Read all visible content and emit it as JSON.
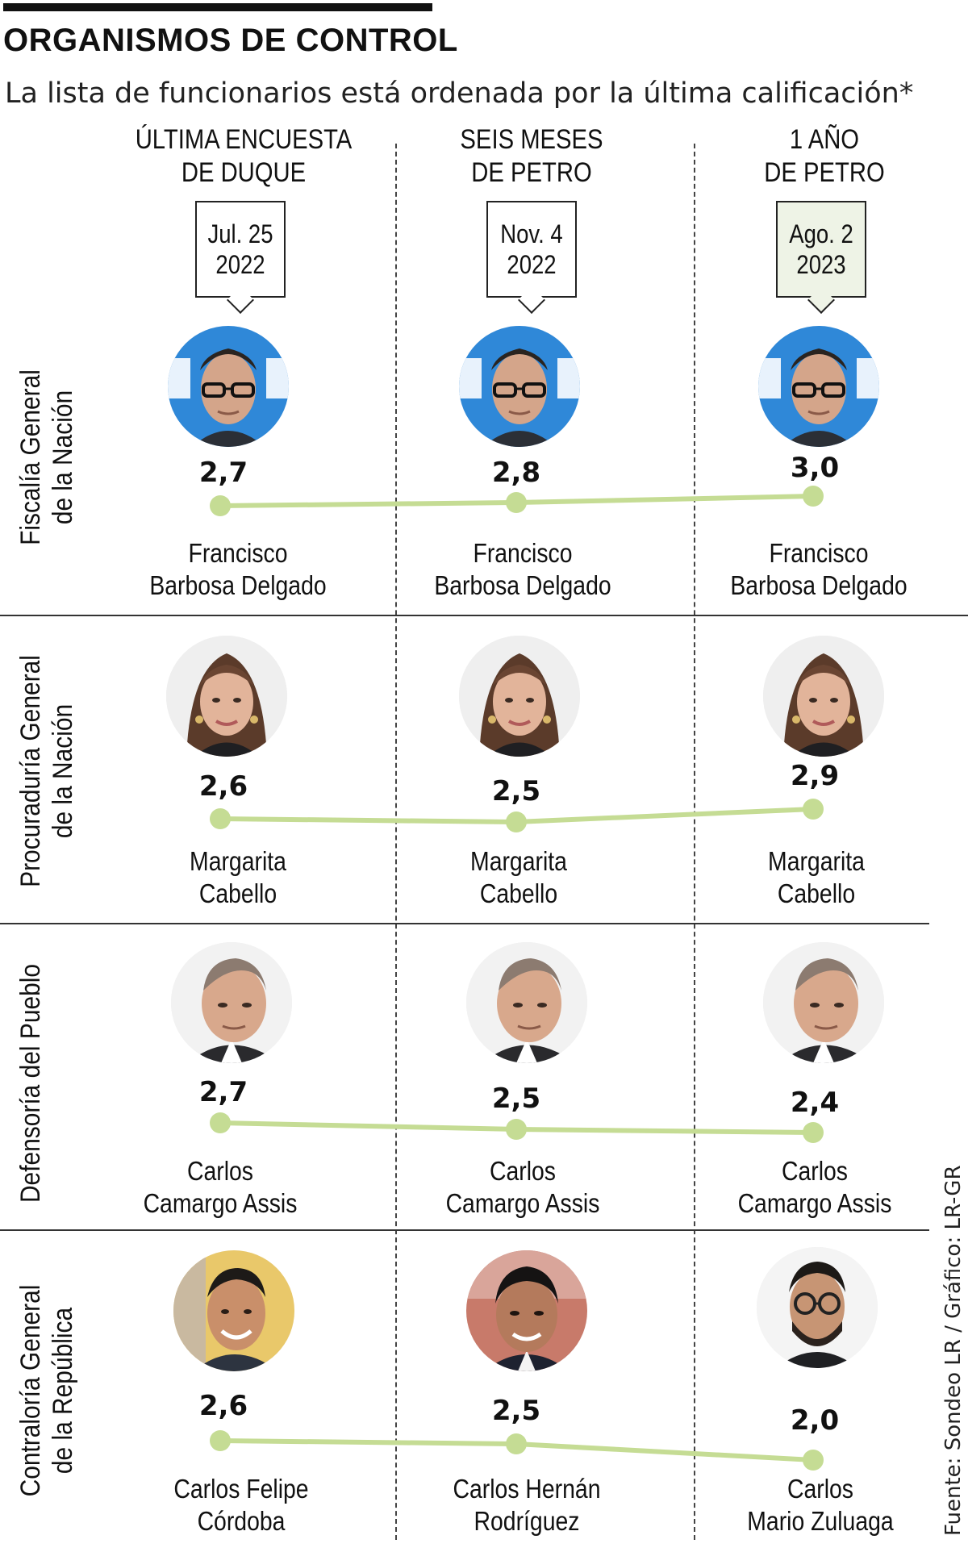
{
  "header": {
    "title": "ORGANISMOS DE CONTROL",
    "subtitle": "La lista de funcionarios está ordenada por la última calificación*"
  },
  "columns": [
    {
      "line1": "ÚLTIMA ENCUESTA",
      "line2": "DE DUQUE",
      "date_line1": "Jul. 25",
      "date_line2": "2022"
    },
    {
      "line1": "SEIS MESES",
      "line2": "DE PETRO",
      "date_line1": "Nov. 4",
      "date_line2": "2022"
    },
    {
      "line1": "1 AÑO",
      "line2": "DE PETRO",
      "date_line1": "Ago. 2",
      "date_line2": "2023"
    }
  ],
  "rows": [
    {
      "label_line1": "Fiscalía General",
      "label_line2": "de la Nación",
      "scores": [
        "2,7",
        "2,8",
        "3,0"
      ],
      "names": [
        [
          "Francisco",
          "Barbosa Delgado"
        ],
        [
          "Francisco",
          "Barbosa Delgado"
        ],
        [
          "Francisco",
          "Barbosa Delgado"
        ]
      ]
    },
    {
      "label_line1": "Procuraduría General",
      "label_line2": "de la Nación",
      "scores": [
        "2,6",
        "2,5",
        "2,9"
      ],
      "names": [
        [
          "Margarita",
          "Cabello"
        ],
        [
          "Margarita",
          "Cabello"
        ],
        [
          "Margarita",
          "Cabello"
        ]
      ]
    },
    {
      "label_line1": "Defensoría del Pueblo",
      "label_line2": "",
      "scores": [
        "2,7",
        "2,5",
        "2,4"
      ],
      "names": [
        [
          "Carlos",
          "Camargo Assis"
        ],
        [
          "Carlos",
          "Camargo Assis"
        ],
        [
          "Carlos",
          "Camargo Assis"
        ]
      ]
    },
    {
      "label_line1": "Contraloría General",
      "label_line2": "de la República",
      "scores": [
        "2,6",
        "2,5",
        "2,0"
      ],
      "names": [
        [
          "Carlos Felipe",
          "Córdoba"
        ],
        [
          "Carlos Hernán",
          "Rodríguez"
        ],
        [
          "Carlos",
          "Mario Zuluaga"
        ]
      ]
    }
  ],
  "source": "Fuente: Sondeo LR / Gráfico: LR-GR",
  "colors": {
    "line": "#c5dc94",
    "marker": "#c5dc94",
    "current_date_box": "#eef3e6",
    "text": "#111111"
  },
  "chart_data": {
    "type": "line",
    "categories": [
      "Jul. 25 2022",
      "Nov. 4 2022",
      "Ago. 2 2023"
    ],
    "series": [
      {
        "name": "Francisco Barbosa Delgado",
        "values": [
          2.7,
          2.8,
          3.0
        ]
      },
      {
        "name": "Margarita Cabello",
        "values": [
          2.6,
          2.5,
          2.9
        ]
      },
      {
        "name": "Carlos Camargo Assis",
        "values": [
          2.7,
          2.5,
          2.4
        ]
      },
      {
        "name": "Carlos Felipe Córdoba / Carlos Hernán Rodríguez / Carlos Mario Zuluaga",
        "values": [
          2.6,
          2.5,
          2.0
        ]
      }
    ],
    "grid": false
  }
}
